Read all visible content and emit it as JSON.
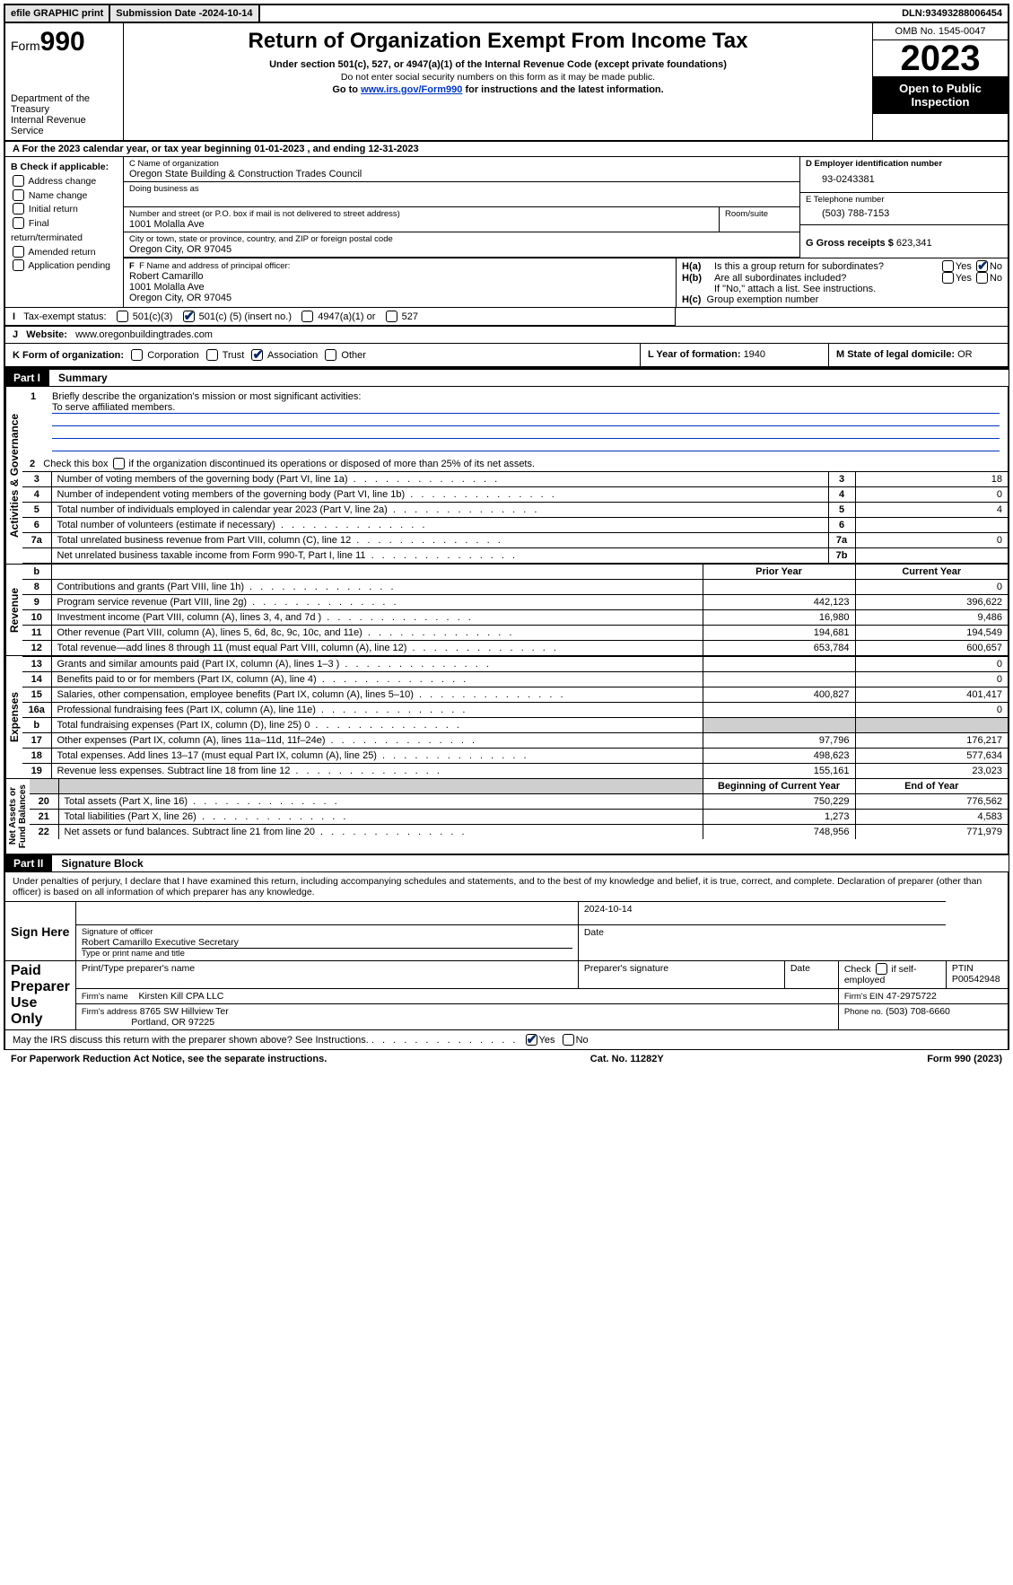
{
  "topbar": {
    "efile": "efile GRAPHIC print",
    "subdate_label": "Submission Date - ",
    "subdate": "2024-10-14",
    "dln_label": "DLN: ",
    "dln": "93493288006454"
  },
  "header": {
    "form_prefix": "Form",
    "form_no": "990",
    "dept": "Department of the Treasury\nInternal Revenue Service",
    "title": "Return of Organization Exempt From Income Tax",
    "sub1": "Under section 501(c), 527, or 4947(a)(1) of the Internal Revenue Code (except private foundations)",
    "sub2": "Do not enter social security numbers on this form as it may be made public.",
    "sub3_pre": "Go to ",
    "sub3_link": "www.irs.gov/Form990",
    "sub3_post": " for instructions and the latest information.",
    "omb": "OMB No. 1545-0047",
    "year": "2023",
    "open": "Open to Public Inspection"
  },
  "a": {
    "text_pre": "A For the 2023 calendar year, or tax year beginning ",
    "begin": "01-01-2023",
    "mid": " , and ending ",
    "end": "12-31-2023"
  },
  "b": {
    "header": "B Check if applicable:",
    "opts": [
      "Address change",
      "Name change",
      "Initial return",
      "Final return/terminated",
      "Amended return",
      "Application pending"
    ]
  },
  "c": {
    "name_lbl": "C Name of organization",
    "name": "Oregon State Building & Construction Trades Council",
    "dba_lbl": "Doing business as",
    "addr_lbl": "Number and street (or P.O. box if mail is not delivered to street address)",
    "room_lbl": "Room/suite",
    "addr": "1001 Molalla Ave",
    "city_lbl": "City or town, state or province, country, and ZIP or foreign postal code",
    "city": "Oregon City, OR  97045"
  },
  "d": {
    "lbl": "D Employer identification number",
    "val": "93-0243381"
  },
  "e": {
    "lbl": "E Telephone number",
    "val": "(503) 788-7153"
  },
  "g": {
    "lbl": "G Gross receipts $ ",
    "val": "623,341"
  },
  "f": {
    "lbl": "F Name and address of principal officer:",
    "name": "Robert Camarillo",
    "addr1": "1001 Molalla Ave",
    "addr2": "Oregon City, OR  97045"
  },
  "h": {
    "a_lbl": "Is this a group return for subordinates?",
    "b_lbl": "Are all subordinates included?",
    "b_note": "If \"No,\" attach a list. See instructions.",
    "c_lbl": "Group exemption number",
    "yes": "Yes",
    "no": "No"
  },
  "i": {
    "lbl": "Tax-exempt status:",
    "o1": "501(c)(3)",
    "o2_pre": "501(c) (",
    "o2_num": "5",
    "o2_post": ") (insert no.)",
    "o3": "4947(a)(1) or",
    "o4": "527"
  },
  "j": {
    "lbl": "Website:",
    "val": "www.oregonbuildingtrades.com"
  },
  "k": {
    "lbl": "K Form of organization:",
    "opts": [
      "Corporation",
      "Trust",
      "Association",
      "Other"
    ]
  },
  "l": {
    "lbl": "L Year of formation: ",
    "val": "1940"
  },
  "m": {
    "lbl": "M State of legal domicile: ",
    "val": "OR"
  },
  "part1": {
    "lbl": "Part I",
    "title": "Summary"
  },
  "summary": {
    "q1": "Briefly describe the organization's mission or most significant activities:",
    "q1_ans": "To serve affiliated members.",
    "q2": "Check this box       if the organization discontinued its operations or disposed of more than 25% of its net assets.",
    "rows_gov": [
      {
        "n": "3",
        "t": "Number of voting members of the governing body (Part VI, line 1a)",
        "k": "3",
        "v": "18"
      },
      {
        "n": "4",
        "t": "Number of independent voting members of the governing body (Part VI, line 1b)",
        "k": "4",
        "v": "0"
      },
      {
        "n": "5",
        "t": "Total number of individuals employed in calendar year 2023 (Part V, line 2a)",
        "k": "5",
        "v": "4"
      },
      {
        "n": "6",
        "t": "Total number of volunteers (estimate if necessary)",
        "k": "6",
        "v": ""
      },
      {
        "n": "7a",
        "t": "Total unrelated business revenue from Part VIII, column (C), line 12",
        "k": "7a",
        "v": "0"
      },
      {
        "n": "",
        "t": "Net unrelated business taxable income from Form 990-T, Part I, line 11",
        "k": "7b",
        "v": ""
      }
    ],
    "col_prior": "Prior Year",
    "col_curr": "Current Year",
    "rev": [
      {
        "n": "8",
        "t": "Contributions and grants (Part VIII, line 1h)",
        "p": "",
        "c": "0"
      },
      {
        "n": "9",
        "t": "Program service revenue (Part VIII, line 2g)",
        "p": "442,123",
        "c": "396,622"
      },
      {
        "n": "10",
        "t": "Investment income (Part VIII, column (A), lines 3, 4, and 7d )",
        "p": "16,980",
        "c": "9,486"
      },
      {
        "n": "11",
        "t": "Other revenue (Part VIII, column (A), lines 5, 6d, 8c, 9c, 10c, and 11e)",
        "p": "194,681",
        "c": "194,549"
      },
      {
        "n": "12",
        "t": "Total revenue—add lines 8 through 11 (must equal Part VIII, column (A), line 12)",
        "p": "653,784",
        "c": "600,657"
      }
    ],
    "exp": [
      {
        "n": "13",
        "t": "Grants and similar amounts paid (Part IX, column (A), lines 1–3 )",
        "p": "",
        "c": "0"
      },
      {
        "n": "14",
        "t": "Benefits paid to or for members (Part IX, column (A), line 4)",
        "p": "",
        "c": "0"
      },
      {
        "n": "15",
        "t": "Salaries, other compensation, employee benefits (Part IX, column (A), lines 5–10)",
        "p": "400,827",
        "c": "401,417"
      },
      {
        "n": "16a",
        "t": "Professional fundraising fees (Part IX, column (A), line 11e)",
        "p": "",
        "c": "0"
      },
      {
        "n": "b",
        "t": "Total fundraising expenses (Part IX, column (D), line 25) 0",
        "p": "shade",
        "c": "shade"
      },
      {
        "n": "17",
        "t": "Other expenses (Part IX, column (A), lines 11a–11d, 11f–24e)",
        "p": "97,796",
        "c": "176,217"
      },
      {
        "n": "18",
        "t": "Total expenses. Add lines 13–17 (must equal Part IX, column (A), line 25)",
        "p": "498,623",
        "c": "577,634"
      },
      {
        "n": "19",
        "t": "Revenue less expenses. Subtract line 18 from line 12",
        "p": "155,161",
        "c": "23,023"
      }
    ],
    "col_beg": "Beginning of Current Year",
    "col_end": "End of Year",
    "net": [
      {
        "n": "20",
        "t": "Total assets (Part X, line 16)",
        "p": "750,229",
        "c": "776,562"
      },
      {
        "n": "21",
        "t": "Total liabilities (Part X, line 26)",
        "p": "1,273",
        "c": "4,583"
      },
      {
        "n": "22",
        "t": "Net assets or fund balances. Subtract line 21 from line 20",
        "p": "748,956",
        "c": "771,979"
      }
    ]
  },
  "vlabels": {
    "gov": "Activities & Governance",
    "rev": "Revenue",
    "exp": "Expenses",
    "net": "Net Assets or\nFund Balances"
  },
  "part2": {
    "lbl": "Part II",
    "title": "Signature Block"
  },
  "sig": {
    "declare": "Under penalties of perjury, I declare that I have examined this return, including accompanying schedules and statements, and to the best of my knowledge and belief, it is true, correct, and complete. Declaration of preparer (other than officer) is based on all information of which preparer has any knowledge.",
    "sign_here": "Sign Here",
    "sig_officer_lbl": "Signature of officer",
    "sig_date": "2024-10-14",
    "date_lbl": "Date",
    "officer_name": "Robert Camarillo  Executive Secretary",
    "type_lbl": "Type or print name and title",
    "paid": "Paid Preparer Use Only",
    "prep_name_lbl": "Print/Type preparer's name",
    "prep_sig_lbl": "Preparer's signature",
    "check_self": "Check         if self-employed",
    "ptin_lbl": "PTIN",
    "ptin": "P00542948",
    "firm_name_lbl": "Firm's name",
    "firm_name": "Kirsten Kill CPA LLC",
    "firm_ein_lbl": "Firm's EIN",
    "firm_ein": "47-2975722",
    "firm_addr_lbl": "Firm's address",
    "firm_addr1": "8765 SW Hillview Ter",
    "firm_addr2": "Portland, OR  97225",
    "phone_lbl": "Phone no.",
    "phone": "(503) 708-6660",
    "discuss": "May the IRS discuss this return with the preparer shown above? See Instructions."
  },
  "footer": {
    "left": "For Paperwork Reduction Act Notice, see the separate instructions.",
    "mid": "Cat. No. 11282Y",
    "right_pre": "Form ",
    "right_form": "990",
    "right_post": " (2023)"
  }
}
